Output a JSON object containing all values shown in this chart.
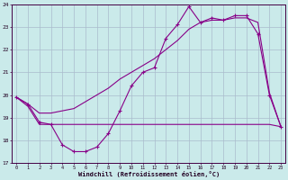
{
  "background_color": "#caeaea",
  "grid_color": "#aabbcc",
  "line_color": "#880088",
  "xlabel": "Windchill (Refroidissement éolien,°C)",
  "x": [
    0,
    1,
    2,
    3,
    4,
    5,
    6,
    7,
    8,
    9,
    10,
    11,
    12,
    13,
    14,
    15,
    16,
    17,
    18,
    19,
    20,
    21,
    22,
    23
  ],
  "curve1": [
    19.9,
    19.6,
    18.8,
    18.7,
    17.8,
    17.5,
    17.5,
    17.7,
    18.3,
    19.3,
    20.4,
    21.0,
    21.2,
    22.5,
    23.1,
    23.9,
    23.2,
    23.4,
    23.3,
    23.5,
    23.5,
    22.7,
    20.0,
    18.6
  ],
  "curve2": [
    19.9,
    19.5,
    18.7,
    18.7,
    18.7,
    18.7,
    18.7,
    18.7,
    18.7,
    18.7,
    18.7,
    18.7,
    18.7,
    18.7,
    18.7,
    18.7,
    18.7,
    18.7,
    18.7,
    18.7,
    18.7,
    18.7,
    18.7,
    18.6
  ],
  "curve3": [
    19.9,
    19.6,
    19.2,
    19.2,
    19.3,
    19.4,
    19.7,
    20.0,
    20.3,
    20.7,
    21.0,
    21.3,
    21.6,
    22.0,
    22.4,
    22.9,
    23.2,
    23.3,
    23.3,
    23.4,
    23.4,
    23.2,
    20.1,
    18.6
  ],
  "ylim": [
    17,
    24
  ],
  "xlim_min": -0.4,
  "xlim_max": 23.4,
  "yticks": [
    17,
    18,
    19,
    20,
    21,
    22,
    23,
    24
  ],
  "xticks": [
    0,
    1,
    2,
    3,
    4,
    5,
    6,
    7,
    8,
    9,
    10,
    11,
    12,
    13,
    14,
    15,
    16,
    17,
    18,
    19,
    20,
    21,
    22,
    23
  ]
}
